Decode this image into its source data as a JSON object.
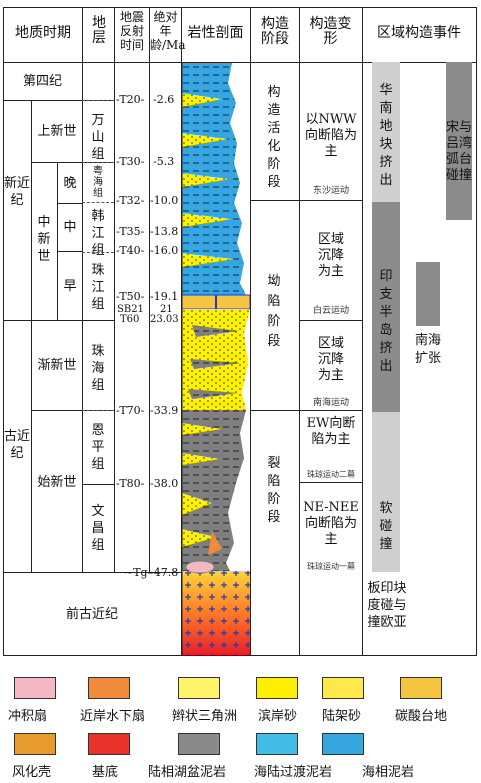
{
  "headers": {
    "period": "地质时期",
    "stratum": "地层",
    "seismic": "地震反射时间",
    "age": "绝对年龄/Ma",
    "lithology": "岩性剖面",
    "tectonic_stage": "构造阶段",
    "tectonic_deform": "构造变形",
    "regional_events": "区域构造事件"
  },
  "periods": {
    "quaternary": "第四纪",
    "neogene": "新近纪",
    "paleogene": "古近纪",
    "pre_paleogene": "前古近纪",
    "pliocene": "上新世",
    "miocene": "中新世",
    "late": "晚",
    "middle": "中",
    "early": "早",
    "oligocene": "渐新世",
    "eocene": "始新世"
  },
  "formations": {
    "wanshan": "万山组",
    "yuehai": "粤海组",
    "hanjiang": "韩江组",
    "zhujiang": "珠江组",
    "zhuhai": "珠海组",
    "enping": "恩平组",
    "wenchang": "文昌组"
  },
  "seismic": {
    "t20": "T20",
    "t30": "T30",
    "t32": "T32",
    "t35": "T35",
    "t40": "T40",
    "t50": "T50",
    "sb21": "SB21",
    "t60": "T60",
    "t70": "T70",
    "t80": "T80",
    "tg": "Tg"
  },
  "ages": {
    "a20": "2.6",
    "a30": "5.3",
    "a32": "10.0",
    "a35": "13.8",
    "a40": "16.0",
    "a50": "19.1",
    "a21": "21",
    "a60": "23.03",
    "a70": "33.9",
    "a80": "38.0",
    "ag": "47.8"
  },
  "stages": {
    "activation": "构造活化阶段",
    "depression": "坳陷阶段",
    "rifting": "裂陷阶段"
  },
  "deformation": {
    "nww": "以NWW向断陷为主",
    "dongsha": "东沙运动",
    "regional1": "区域沉降为主",
    "baiyun": "白云运动",
    "regional2": "区域沉降为主",
    "nanhai": "南海运动",
    "ew": "EW向断陷为主",
    "zhuqiong2": "珠琼运动二幕",
    "ne": "NE-NEE向断陷为主",
    "zhuqiong1": "珠琼运动一幕"
  },
  "events": {
    "south_china": "华南地块挤出",
    "indochina": "印支半岛挤出",
    "soft_collision": "软碰撞",
    "plate_collision": "板印块度碰与撞欧亚",
    "song_lu": "宋与吕湾弧台碰撞",
    "scs_spreading": "南海扩张"
  },
  "legend": [
    {
      "label": "冲积扇",
      "fill": "#f4b8c4"
    },
    {
      "label": "近岸水下扇",
      "fill": "#f08a3c"
    },
    {
      "label": "辫状三角洲",
      "fill": "#fff36a"
    },
    {
      "label": "滨岸砂",
      "fill": "#fff000"
    },
    {
      "label": "陆架砂",
      "fill": "#ffe94a"
    },
    {
      "label": "碳酸台地",
      "fill": "#f5c542"
    },
    {
      "label": "风化壳",
      "fill": "#e79a2e"
    },
    {
      "label": "基底",
      "fill": "#e8322a"
    },
    {
      "label": "陆相湖盆泥岩",
      "fill": "#8a8a8a"
    },
    {
      "label": "海陆过渡泥岩",
      "fill": "#43bde8"
    },
    {
      "label": "海相泥岩",
      "fill": "#35a6e0"
    }
  ],
  "colors": {
    "marine": "#35a6e0",
    "yellow": "#fff200",
    "gray": "#7f7f7f",
    "event_gray": "#8c8c8c",
    "event_light": "#cfcfcf"
  }
}
